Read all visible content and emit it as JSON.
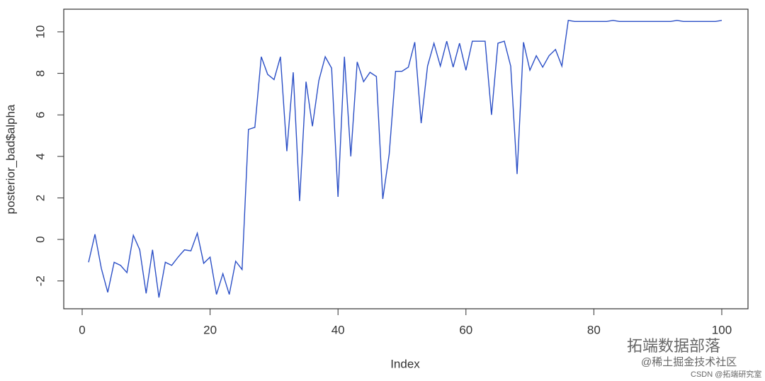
{
  "chart_data": {
    "type": "line",
    "x_label": "Index",
    "y_label": "posterior_bad$alpha",
    "x": [
      1,
      2,
      3,
      4,
      5,
      6,
      7,
      8,
      9,
      10,
      11,
      12,
      13,
      14,
      15,
      16,
      17,
      18,
      19,
      20,
      21,
      22,
      23,
      24,
      25,
      26,
      27,
      28,
      29,
      30,
      31,
      32,
      33,
      34,
      35,
      36,
      37,
      38,
      39,
      40,
      41,
      42,
      43,
      44,
      45,
      46,
      47,
      48,
      49,
      50,
      51,
      52,
      53,
      54,
      55,
      56,
      57,
      58,
      59,
      60,
      61,
      62,
      63,
      64,
      65,
      66,
      67,
      68,
      69,
      70,
      71,
      72,
      73,
      74,
      75,
      76,
      77,
      78,
      79,
      80,
      81,
      82,
      83,
      84,
      85,
      86,
      87,
      88,
      89,
      90,
      91,
      92,
      93,
      94,
      95,
      96,
      97,
      98,
      99,
      100
    ],
    "series": [
      {
        "name": "posterior_bad$alpha",
        "color": "#2b4fc6",
        "values": [
          -1.1,
          0.25,
          -1.4,
          -2.55,
          -1.1,
          -1.25,
          -1.6,
          0.2,
          -0.5,
          -2.6,
          -0.5,
          -2.8,
          -1.1,
          -1.25,
          -0.85,
          -0.5,
          -0.55,
          0.3,
          -1.15,
          -0.85,
          -2.65,
          -1.65,
          -2.65,
          -1.05,
          -1.45,
          5.3,
          5.4,
          8.8,
          7.95,
          7.7,
          8.8,
          4.25,
          8.05,
          1.85,
          7.6,
          5.45,
          7.65,
          8.8,
          8.25,
          2.05,
          8.8,
          4.0,
          8.55,
          7.6,
          8.05,
          7.85,
          1.95,
          4.1,
          8.1,
          8.1,
          8.3,
          9.5,
          5.6,
          8.35,
          9.45,
          8.35,
          9.55,
          8.3,
          9.45,
          8.15,
          9.55,
          9.55,
          9.55,
          6.0,
          9.45,
          9.55,
          8.35,
          3.15,
          9.5,
          8.15,
          8.85,
          8.3,
          8.85,
          9.15,
          8.35,
          10.55,
          10.5,
          10.5,
          10.5,
          10.5,
          10.5,
          10.5,
          10.55,
          10.5,
          10.5,
          10.5,
          10.5,
          10.5,
          10.5,
          10.5,
          10.5,
          10.5,
          10.55,
          10.5,
          10.5,
          10.5,
          10.5,
          10.5,
          10.5,
          10.55
        ]
      }
    ],
    "xlim": [
      -2.88,
      104.1
    ],
    "ylim": [
      -3.34,
      11.09
    ],
    "xticks": [
      0,
      20,
      40,
      60,
      80,
      100
    ],
    "yticks": [
      -2,
      0,
      2,
      4,
      6,
      8,
      10
    ]
  },
  "watermarks": [
    "拓端数据部落",
    "@稀土掘金技术社区",
    "CSDN @拓端研究室"
  ]
}
